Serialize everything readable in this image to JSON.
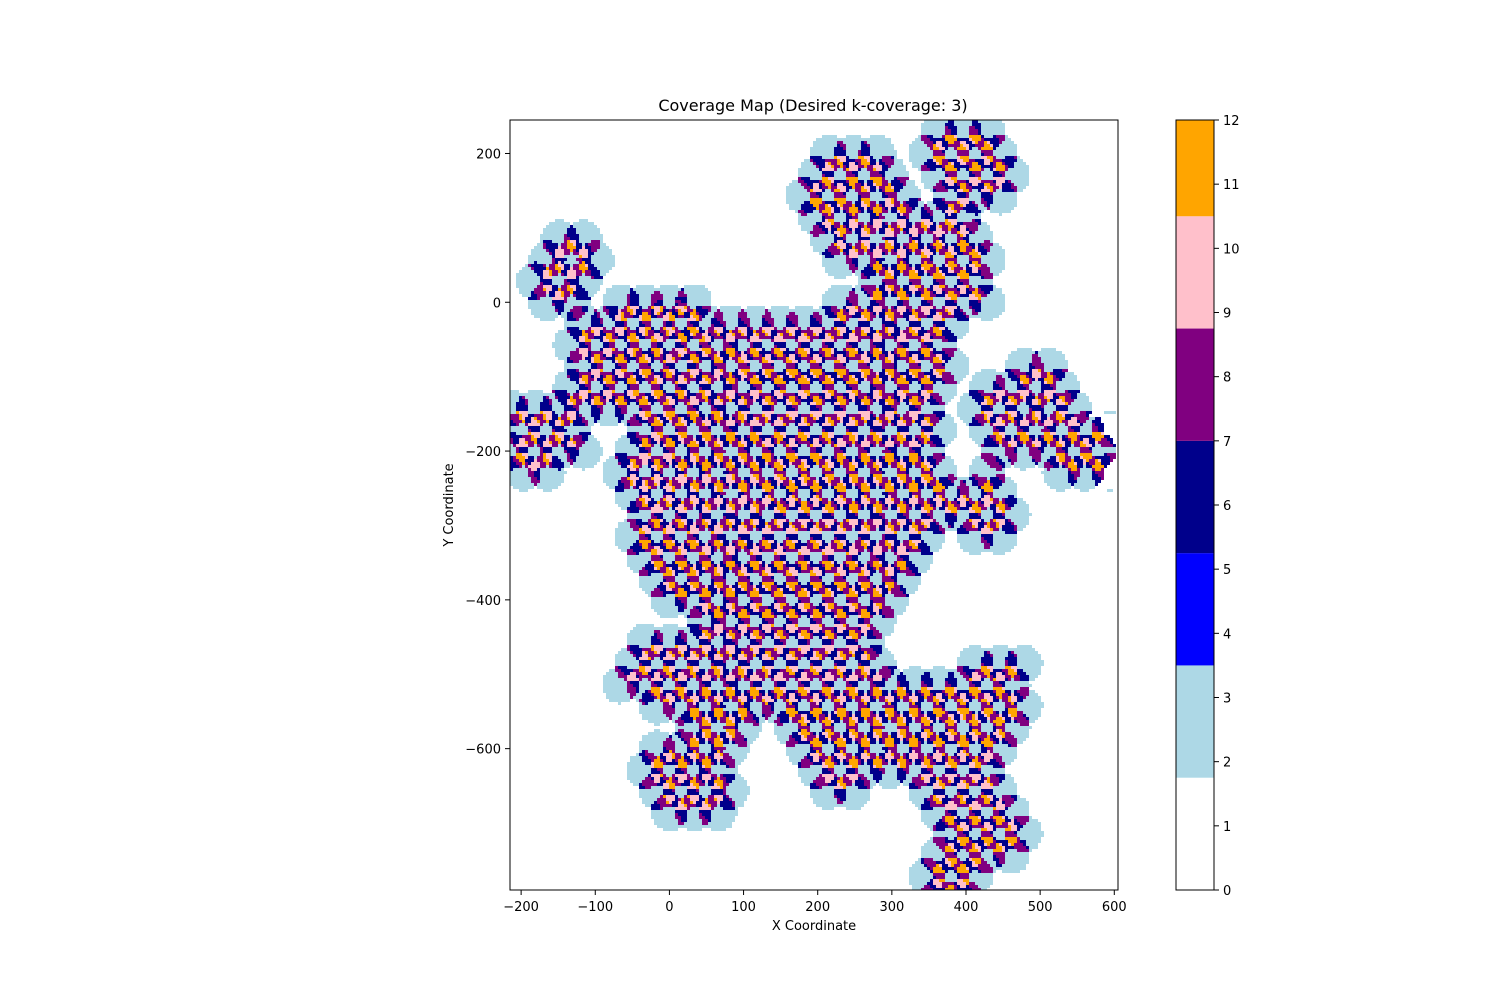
{
  "chart_data": {
    "type": "heatmap",
    "title": "Coverage Map (Desired k-coverage: 3)",
    "xlabel": "X Coordinate",
    "ylabel": "Y Coordinate",
    "xlim": [
      -215,
      605
    ],
    "ylim": [
      -790,
      245
    ],
    "x_ticks": [
      -200,
      -100,
      0,
      100,
      200,
      300,
      400,
      500,
      600
    ],
    "x_tick_labels": [
      "−200",
      "−100",
      "0",
      "100",
      "200",
      "300",
      "400",
      "500",
      "600"
    ],
    "y_ticks": [
      200,
      0,
      -200,
      -400,
      -600
    ],
    "y_tick_labels": [
      "200",
      "0",
      "−200",
      "−400",
      "−600"
    ],
    "grid": false,
    "sensor_radius": 25,
    "sensor_lattice": {
      "spacing": 33,
      "clusters": [
        {
          "center": [
            155,
            -240
          ],
          "radius": 6.8
        },
        {
          "center": [
            -140,
            40
          ],
          "radius": 1.6
        },
        {
          "center": [
            -60,
            -80
          ],
          "radius": 2.6
        },
        {
          "center": [
            20,
            -40
          ],
          "radius": 1.8
        },
        {
          "center": [
            -170,
            -180
          ],
          "radius": 1.8
        },
        {
          "center": [
            250,
            130
          ],
          "radius": 2.4
        },
        {
          "center": [
            400,
            190
          ],
          "radius": 2.0
        },
        {
          "center": [
            360,
            40
          ],
          "radius": 2.6
        },
        {
          "center": [
            300,
            -60
          ],
          "radius": 2.8
        },
        {
          "center": [
            480,
            -150
          ],
          "radius": 2.2
        },
        {
          "center": [
            560,
            -200
          ],
          "radius": 1.4
        },
        {
          "center": [
            420,
            -280
          ],
          "radius": 1.6
        },
        {
          "center": [
            180,
            -440
          ],
          "radius": 3.4
        },
        {
          "center": [
            60,
            -510
          ],
          "radius": 2.6
        },
        {
          "center": [
            -20,
            -490
          ],
          "radius": 1.6
        },
        {
          "center": [
            30,
            -640
          ],
          "radius": 2.0
        },
        {
          "center": [
            240,
            -570
          ],
          "radius": 2.8
        },
        {
          "center": [
            380,
            -580
          ],
          "radius": 2.6
        },
        {
          "center": [
            440,
            -520
          ],
          "radius": 1.6
        },
        {
          "center": [
            420,
            -700
          ],
          "radius": 2.0
        },
        {
          "center": [
            390,
            -770
          ],
          "radius": 1.4
        }
      ]
    },
    "colorbar": {
      "ticks": [
        0,
        1,
        2,
        3,
        4,
        5,
        6,
        7,
        8,
        9,
        10,
        11,
        12
      ],
      "tick_labels": [
        "0",
        "1",
        "2",
        "3",
        "4",
        "5",
        "6",
        "7",
        "8",
        "9",
        "10",
        "11",
        "12"
      ],
      "bands": [
        {
          "from": 0,
          "to": 1.75,
          "color": "#ffffff"
        },
        {
          "from": 1.75,
          "to": 3.5,
          "color": "#add8e6"
        },
        {
          "from": 3.5,
          "to": 5.25,
          "color": "#0000ff"
        },
        {
          "from": 5.25,
          "to": 7.0,
          "color": "#00008b"
        },
        {
          "from": 7.0,
          "to": 8.75,
          "color": "#800080"
        },
        {
          "from": 8.75,
          "to": 10.5,
          "color": "#ffc0cb"
        },
        {
          "from": 10.5,
          "to": 12,
          "color": "#ffa500"
        }
      ]
    }
  }
}
